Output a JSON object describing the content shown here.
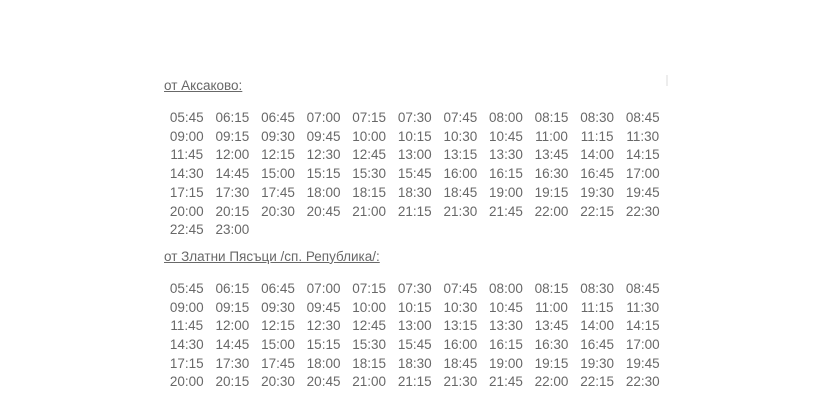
{
  "page": {
    "background": "#ffffff",
    "text_color": "#686868"
  },
  "sections": [
    {
      "title": "от Аксаково:",
      "rows": [
        [
          "05:45",
          "06:15",
          "06:45",
          "07:00",
          "07:15",
          "07:30",
          "07:45",
          "08:00",
          "08:15",
          "08:30",
          "08:45"
        ],
        [
          "09:00",
          "09:15",
          "09:30",
          "09:45",
          "10:00",
          "10:15",
          "10:30",
          "10:45",
          "11:00",
          "11:15",
          "11:30"
        ],
        [
          "11:45",
          "12:00",
          "12:15",
          "12:30",
          "12:45",
          "13:00",
          "13:15",
          "13:30",
          "13:45",
          "14:00",
          "14:15"
        ],
        [
          "14:30",
          "14:45",
          "15:00",
          "15:15",
          "15:30",
          "15:45",
          "16:00",
          "16:15",
          "16:30",
          "16:45",
          "17:00"
        ],
        [
          "17:15",
          "17:30",
          "17:45",
          "18:00",
          "18:15",
          "18:30",
          "18:45",
          "19:00",
          "19:15",
          "19:30",
          "19:45"
        ],
        [
          "20:00",
          "20:15",
          "20:30",
          "20:45",
          "21:00",
          "21:15",
          "21:30",
          "21:45",
          "22:00",
          "22:15",
          "22:30"
        ],
        [
          "22:45",
          "23:00"
        ]
      ]
    },
    {
      "title": "от Златни Пясъци /сп. Република/:",
      "rows": [
        [
          "05:45",
          "06:15",
          "06:45",
          "07:00",
          "07:15",
          "07:30",
          "07:45",
          "08:00",
          "08:15",
          "08:30",
          "08:45"
        ],
        [
          "09:00",
          "09:15",
          "09:30",
          "09:45",
          "10:00",
          "10:15",
          "10:30",
          "10:45",
          "11:00",
          "11:15",
          "11:30"
        ],
        [
          "11:45",
          "12:00",
          "12:15",
          "12:30",
          "12:45",
          "13:00",
          "13:15",
          "13:30",
          "13:45",
          "14:00",
          "14:15"
        ],
        [
          "14:30",
          "14:45",
          "15:00",
          "15:15",
          "15:30",
          "15:45",
          "16:00",
          "16:15",
          "16:30",
          "16:45",
          "17:00"
        ],
        [
          "17:15",
          "17:30",
          "17:45",
          "18:00",
          "18:15",
          "18:30",
          "18:45",
          "19:00",
          "19:15",
          "19:30",
          "19:45"
        ],
        [
          "20:00",
          "20:15",
          "20:30",
          "20:45",
          "21:00",
          "21:15",
          "21:30",
          "21:45",
          "22:00",
          "22:15",
          "22:30"
        ]
      ]
    }
  ]
}
